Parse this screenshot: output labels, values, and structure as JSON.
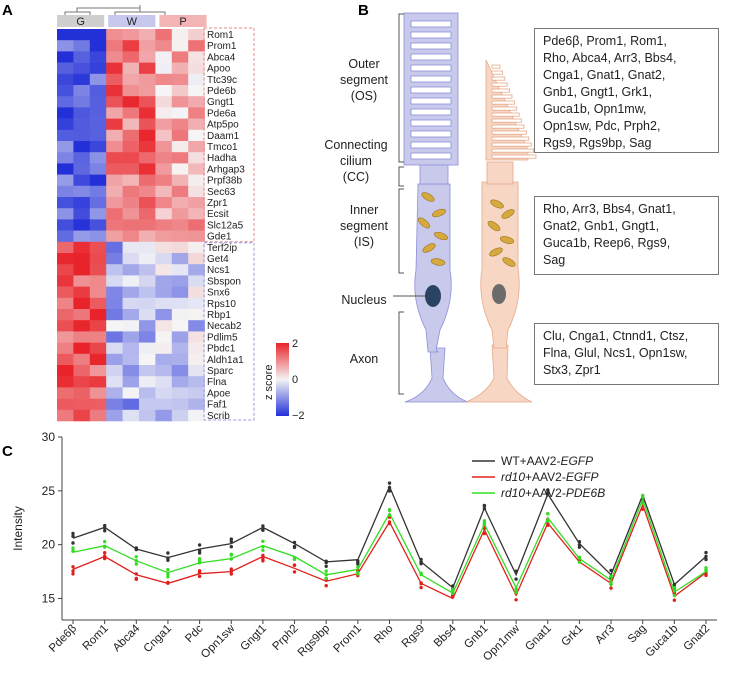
{
  "panelA": {
    "letter": "A",
    "groups": [
      "G",
      "W",
      "P"
    ],
    "genes": [
      "Rom1",
      "Prom1",
      "Abca4",
      "Apoo",
      "Ttc39c",
      "Pde6b",
      "Gngt1",
      "Pde6a",
      "Atp5po",
      "Daam1",
      "Tmco1",
      "Hadha",
      "Arhgap3",
      "Prpf38b",
      "Sec63",
      "Zpr1",
      "Ecsit",
      "Slc12a5",
      "Gde1",
      "Terf2ip",
      "Get4",
      "Ncs1",
      "Sbspon",
      "Snx6",
      "Rps10",
      "Rbp1",
      "Necab2",
      "Pdlim5",
      "Pbdc1",
      "Aldh1a1",
      "Sparc",
      "Flna",
      "Apoe",
      "Faf1",
      "Scrib"
    ],
    "colorbar": {
      "label": "z score",
      "ticks": [
        "2",
        "0",
        "−2"
      ]
    },
    "colors": {
      "high": "#e8242a",
      "mid": "#f4f4f4",
      "low": "#2330d8"
    }
  },
  "panelB": {
    "letter": "B",
    "labels": [
      {
        "lines": [
          "Outer",
          "segment",
          "(OS)"
        ]
      },
      {
        "lines": [
          "Connecting",
          "cilium",
          "(CC)"
        ]
      },
      {
        "lines": [
          "Inner",
          "segment",
          "(IS)"
        ]
      },
      {
        "lines": [
          "Nucleus"
        ]
      },
      {
        "lines": [
          "Axon"
        ]
      }
    ],
    "boxes": [
      [
        "Pde6β, Prom1, Rom1,",
        "Rho, Abca4, Arr3, Bbs4,",
        "Cnga1, Gnat1, Gnat2,",
        "Gnb1, Gngt1, Grk1,",
        "Guca1b, Opn1mw,",
        "Opn1sw, Pdc, Prph2,",
        "Rgs9, Rgs9bp, Sag"
      ],
      [
        "Rho, Arr3, Bbs4, Gnat1,",
        "Gnat2, Gnb1, Gngt1,",
        "Guca1b, Reep6, Rgs9,",
        "Sag"
      ],
      [
        "Clu, Cnga1, Ctnnd1, Ctsz,",
        "Flna, Glul, Ncs1, Opn1sw,",
        "Stx3, Zpr1"
      ]
    ],
    "colors": {
      "rod": "#c9c9ec",
      "rod_edge": "#8d8fd8",
      "cone": "#f7d6c4",
      "cone_edge": "#e6a888",
      "mito": "#d6a93e",
      "nucleus": "#2b4363"
    }
  },
  "panelC": {
    "letter": "C",
    "chart_data": {
      "type": "line",
      "ylabel": "Intensity",
      "xlabel": "",
      "ylim": [
        13,
        30
      ],
      "yticks": [
        15,
        20,
        25,
        30
      ],
      "categories": [
        "Pde6β",
        "Rom1",
        "Abca4",
        "Cnga1",
        "Pdc",
        "Opn1sw",
        "Gngt1",
        "Prph2",
        "Rgs9bp",
        "Prom1",
        "Rho",
        "Rgs9",
        "Bbs4",
        "Gnb1",
        "Opn1mw",
        "Gnat1",
        "Grk1",
        "Arr3",
        "Sag",
        "Guca1b",
        "Gnat2"
      ],
      "series": [
        {
          "name": "WT+AAV2-",
          "italic": "EGFP",
          "color": "#333333",
          "values": [
            20.6,
            21.6,
            19.6,
            18.8,
            19.6,
            20.1,
            21.6,
            20.1,
            18.4,
            18.6,
            25.4,
            18.4,
            16.0,
            23.4,
            17.2,
            24.7,
            20.1,
            17.2,
            24.6,
            16.3,
            18.9
          ]
        },
        {
          "name": "rd10+AAV2-",
          "italic": "EGFP",
          "italic_prefix": true,
          "color": "#e0201d",
          "values": [
            17.7,
            18.9,
            17.2,
            16.4,
            17.3,
            17.5,
            18.9,
            17.8,
            16.6,
            17.3,
            22.1,
            16.4,
            15.0,
            21.4,
            15.3,
            22.0,
            18.4,
            16.4,
            23.7,
            15.2,
            17.4
          ]
        },
        {
          "name": "rd10+AAV2-",
          "italic": "PDE6B",
          "italic_prefix": true,
          "color": "#33dd22",
          "values": [
            19.3,
            19.9,
            18.5,
            17.4,
            18.3,
            18.7,
            19.9,
            18.9,
            17.2,
            17.7,
            22.9,
            17.2,
            15.5,
            21.9,
            16.0,
            22.5,
            18.7,
            16.7,
            24.2,
            15.6,
            17.5
          ]
        }
      ]
    }
  }
}
